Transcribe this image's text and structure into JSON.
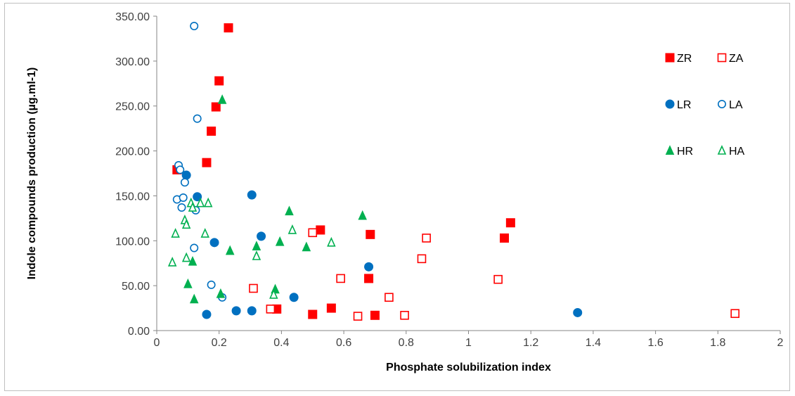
{
  "chart_data": {
    "type": "scatter",
    "xlabel": "Phosphate solubilization index",
    "ylabel": "Indole compounds production (µg.ml-1)",
    "xlim": [
      0,
      2
    ],
    "ylim": [
      0,
      350
    ],
    "x_ticks": [
      "0",
      "0.2",
      "0.4",
      "0.6",
      "0.8",
      "1",
      "1.2",
      "1.4",
      "1.6",
      "1.8",
      "2"
    ],
    "y_ticks": [
      "0.00",
      "50.00",
      "100.00",
      "150.00",
      "200.00",
      "250.00",
      "300.00",
      "350.00"
    ],
    "grid": false,
    "legend_position": "top-right",
    "colors": {
      "Z": "#ff0000",
      "L": "#0070c0",
      "H": "#00b050"
    },
    "series": [
      {
        "name": "ZR",
        "marker": "square",
        "filled": true,
        "color": "#ff0000",
        "points": [
          [
            0.23,
            337
          ],
          [
            0.2,
            278
          ],
          [
            0.19,
            249
          ],
          [
            0.175,
            222
          ],
          [
            0.16,
            187
          ],
          [
            0.065,
            179
          ],
          [
            0.525,
            112
          ],
          [
            0.685,
            107
          ],
          [
            0.68,
            58
          ],
          [
            1.115,
            103
          ],
          [
            1.135,
            120
          ],
          [
            0.385,
            24
          ],
          [
            0.5,
            18
          ],
          [
            0.56,
            25
          ],
          [
            0.7,
            17
          ]
        ]
      },
      {
        "name": "ZA",
        "marker": "square",
        "filled": false,
        "color": "#ff0000",
        "points": [
          [
            0.5,
            109
          ],
          [
            0.865,
            103
          ],
          [
            0.85,
            80
          ],
          [
            0.59,
            58
          ],
          [
            0.31,
            47
          ],
          [
            0.745,
            37
          ],
          [
            1.095,
            57
          ],
          [
            0.365,
            24
          ],
          [
            0.645,
            16
          ],
          [
            0.795,
            17
          ],
          [
            1.855,
            19
          ]
        ]
      },
      {
        "name": "LR",
        "marker": "circle",
        "filled": true,
        "color": "#0070c0",
        "points": [
          [
            0.095,
            173
          ],
          [
            0.305,
            151
          ],
          [
            0.13,
            149
          ],
          [
            0.335,
            105
          ],
          [
            0.185,
            98
          ],
          [
            0.68,
            71
          ],
          [
            0.44,
            37
          ],
          [
            0.255,
            22
          ],
          [
            0.305,
            22
          ],
          [
            0.16,
            18
          ],
          [
            1.35,
            20
          ]
        ]
      },
      {
        "name": "LA",
        "marker": "circle",
        "filled": false,
        "color": "#0070c0",
        "points": [
          [
            0.12,
            339
          ],
          [
            0.13,
            236
          ],
          [
            0.07,
            184
          ],
          [
            0.075,
            179
          ],
          [
            0.09,
            165
          ],
          [
            0.065,
            146
          ],
          [
            0.085,
            148
          ],
          [
            0.08,
            137
          ],
          [
            0.125,
            134
          ],
          [
            0.12,
            92
          ],
          [
            0.175,
            51
          ],
          [
            0.21,
            37
          ]
        ]
      },
      {
        "name": "HR",
        "marker": "triangle",
        "filled": true,
        "color": "#00b050",
        "points": [
          [
            0.21,
            257
          ],
          [
            0.425,
            133
          ],
          [
            0.66,
            128
          ],
          [
            0.235,
            89
          ],
          [
            0.32,
            94
          ],
          [
            0.395,
            99
          ],
          [
            0.48,
            93
          ],
          [
            0.115,
            77
          ],
          [
            0.1,
            52
          ],
          [
            0.38,
            46
          ],
          [
            0.205,
            41
          ],
          [
            0.12,
            35
          ]
        ]
      },
      {
        "name": "HA",
        "marker": "triangle",
        "filled": false,
        "color": "#00b050",
        "points": [
          [
            0.11,
            142
          ],
          [
            0.14,
            142
          ],
          [
            0.165,
            142
          ],
          [
            0.115,
            137
          ],
          [
            0.09,
            123
          ],
          [
            0.095,
            118
          ],
          [
            0.06,
            108
          ],
          [
            0.155,
            108
          ],
          [
            0.435,
            112
          ],
          [
            0.56,
            98
          ],
          [
            0.32,
            83
          ],
          [
            0.095,
            81
          ],
          [
            0.05,
            76
          ],
          [
            0.375,
            40
          ]
        ]
      }
    ]
  }
}
